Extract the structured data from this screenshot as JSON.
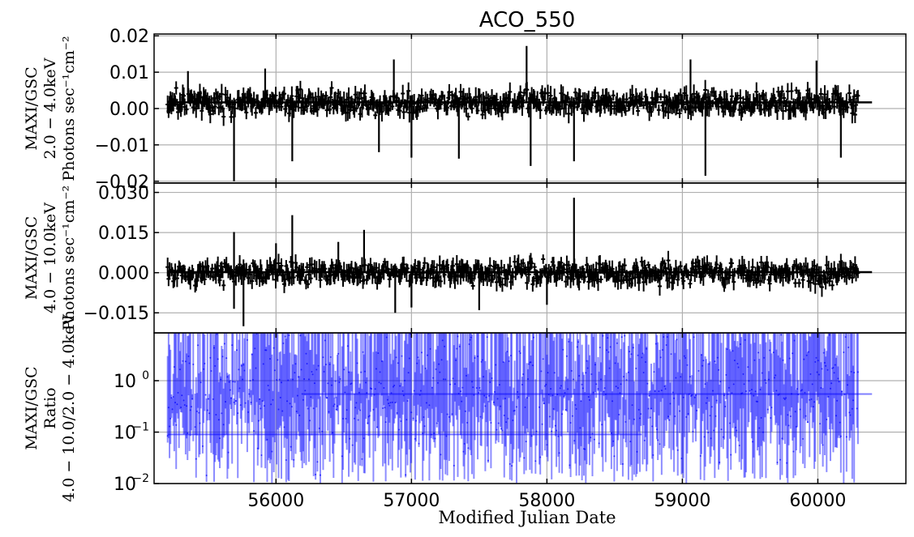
{
  "chart_data": [
    {
      "type": "line",
      "title": "ACO_550",
      "ylabel_lines": [
        "MAXI/GSC",
        "2.0 − 4.0keV",
        "Photons sec⁻¹cm⁻²"
      ],
      "xlabel": "",
      "xlim": [
        55100,
        60650
      ],
      "ylim": [
        -0.0205,
        0.0205
      ],
      "yticks": [
        -0.02,
        -0.01,
        0.0,
        0.01,
        0.02
      ],
      "ytick_labels": [
        "−0.02",
        "−0.01",
        "0.00",
        "0.01",
        "0.02"
      ],
      "grid": true,
      "series": [
        {
          "mjd_start": 55200,
          "mjd_end": 60300,
          "step_days": 7,
          "baseline": 0.0017,
          "noise": 0.0027,
          "color": "#000000"
        }
      ],
      "fit_line": {
        "x": [
          55200,
          60400
        ],
        "y": 0.0017
      },
      "spikes": [
        {
          "x": 55690,
          "y": -0.02
        },
        {
          "x": 55350,
          "y": 0.0103
        },
        {
          "x": 55920,
          "y": 0.011
        },
        {
          "x": 56120,
          "y": -0.0145
        },
        {
          "x": 56870,
          "y": 0.0135
        },
        {
          "x": 57000,
          "y": -0.0135
        },
        {
          "x": 57350,
          "y": -0.0138
        },
        {
          "x": 57850,
          "y": 0.0172
        },
        {
          "x": 57880,
          "y": -0.0158
        },
        {
          "x": 58200,
          "y": -0.0145
        },
        {
          "x": 59060,
          "y": 0.0135
        },
        {
          "x": 59170,
          "y": -0.0185
        },
        {
          "x": 59990,
          "y": 0.0132
        },
        {
          "x": 60170,
          "y": -0.0135
        },
        {
          "x": 56760,
          "y": -0.012
        }
      ]
    },
    {
      "type": "line",
      "ylabel_lines": [
        "MAXI/GSC",
        "4.0 − 10.0keV",
        "Photons sec⁻¹cm⁻²"
      ],
      "xlabel": "",
      "xlim": [
        55100,
        60650
      ],
      "ylim": [
        -0.0225,
        0.0335
      ],
      "yticks": [
        -0.015,
        0.0,
        0.015,
        0.03
      ],
      "ytick_labels": [
        "−0.015",
        "0.000",
        "0.015",
        "0.030"
      ],
      "grid": true,
      "series": [
        {
          "mjd_start": 55200,
          "mjd_end": 60300,
          "step_days": 7,
          "baseline": 0.0,
          "noise": 0.0035,
          "color": "#000000"
        }
      ],
      "fit_line": {
        "x": [
          55200,
          60400
        ],
        "y": 0.0002
      },
      "spikes": [
        {
          "x": 55690,
          "y": 0.0152
        },
        {
          "x": 55690,
          "y": -0.0135
        },
        {
          "x": 55760,
          "y": -0.02
        },
        {
          "x": 56120,
          "y": 0.0215
        },
        {
          "x": 56000,
          "y": 0.011
        },
        {
          "x": 56650,
          "y": 0.016
        },
        {
          "x": 56880,
          "y": -0.015
        },
        {
          "x": 57000,
          "y": -0.013
        },
        {
          "x": 58200,
          "y": 0.028
        },
        {
          "x": 58000,
          "y": -0.012
        },
        {
          "x": 57500,
          "y": -0.014
        },
        {
          "x": 56460,
          "y": 0.0115
        }
      ]
    },
    {
      "type": "line",
      "ylabel_lines": [
        "MAXI/GSC",
        "Ratio",
        "4.0 − 10.0/2.0 − 4.0keV"
      ],
      "xlabel": "Modified Julian Date",
      "xlim": [
        55100,
        60650
      ],
      "ylim": [
        0.01,
        8.5
      ],
      "yscale": "log",
      "yticks": [
        0.01,
        0.1,
        1.0
      ],
      "ytick_labels": [
        "10",
        "10",
        "10"
      ],
      "ytick_exponents": [
        "−2",
        "−1",
        "0"
      ],
      "xticks": [
        56000,
        57000,
        58000,
        59000,
        60000
      ],
      "xtick_labels": [
        "56000",
        "57000",
        "58000",
        "59000",
        "60000"
      ],
      "grid": true,
      "series": [
        {
          "mjd_start": 55200,
          "mjd_end": 60300,
          "step_days": 7,
          "color": "#0000ff",
          "opacity": 0.45
        }
      ],
      "fit_lines": [
        {
          "x": [
            55200,
            58700
          ],
          "y": 0.09
        },
        {
          "x": [
            56200,
            60400
          ],
          "y": 0.55
        }
      ]
    }
  ]
}
